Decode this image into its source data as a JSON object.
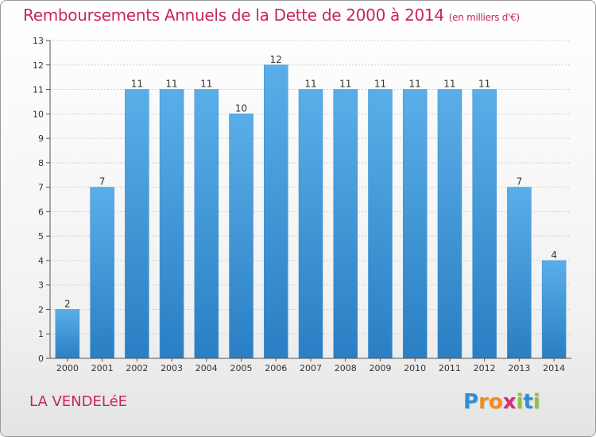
{
  "header": {
    "title": "Remboursements Annuels de la Dette de 2000 à 2014",
    "unit": "(en milliers d'€)"
  },
  "footer": {
    "commune": "LA VENDELéE",
    "logo_letters": [
      "P",
      "r",
      "o",
      "x",
      "i",
      "t",
      "i"
    ],
    "logo_colors": [
      "#2e8fd4",
      "#f28c1f",
      "#f28c1f",
      "#d92b7a",
      "#8bc43f",
      "#2e8fd4",
      "#8bc43f"
    ]
  },
  "colors": {
    "bar_light": "#5aaee8",
    "bar_dark": "#2a7fc4",
    "grid": "#d0d0d0",
    "axis": "#555555",
    "text": "#333333"
  },
  "chart_data": {
    "type": "bar",
    "title": "Remboursements Annuels de la Dette de 2000 à 2014",
    "xlabel": "",
    "ylabel": "",
    "ylim": [
      0,
      13
    ],
    "yticks": [
      0,
      1,
      2,
      3,
      4,
      5,
      6,
      7,
      8,
      9,
      10,
      11,
      12,
      13
    ],
    "grid": true,
    "categories": [
      "2000",
      "2001",
      "2002",
      "2003",
      "2004",
      "2005",
      "2006",
      "2007",
      "2008",
      "2009",
      "2010",
      "2011",
      "2012",
      "2013",
      "2014"
    ],
    "values": [
      2,
      7,
      11,
      11,
      11,
      10,
      12,
      11,
      11,
      11,
      11,
      11,
      11,
      7,
      4
    ]
  }
}
